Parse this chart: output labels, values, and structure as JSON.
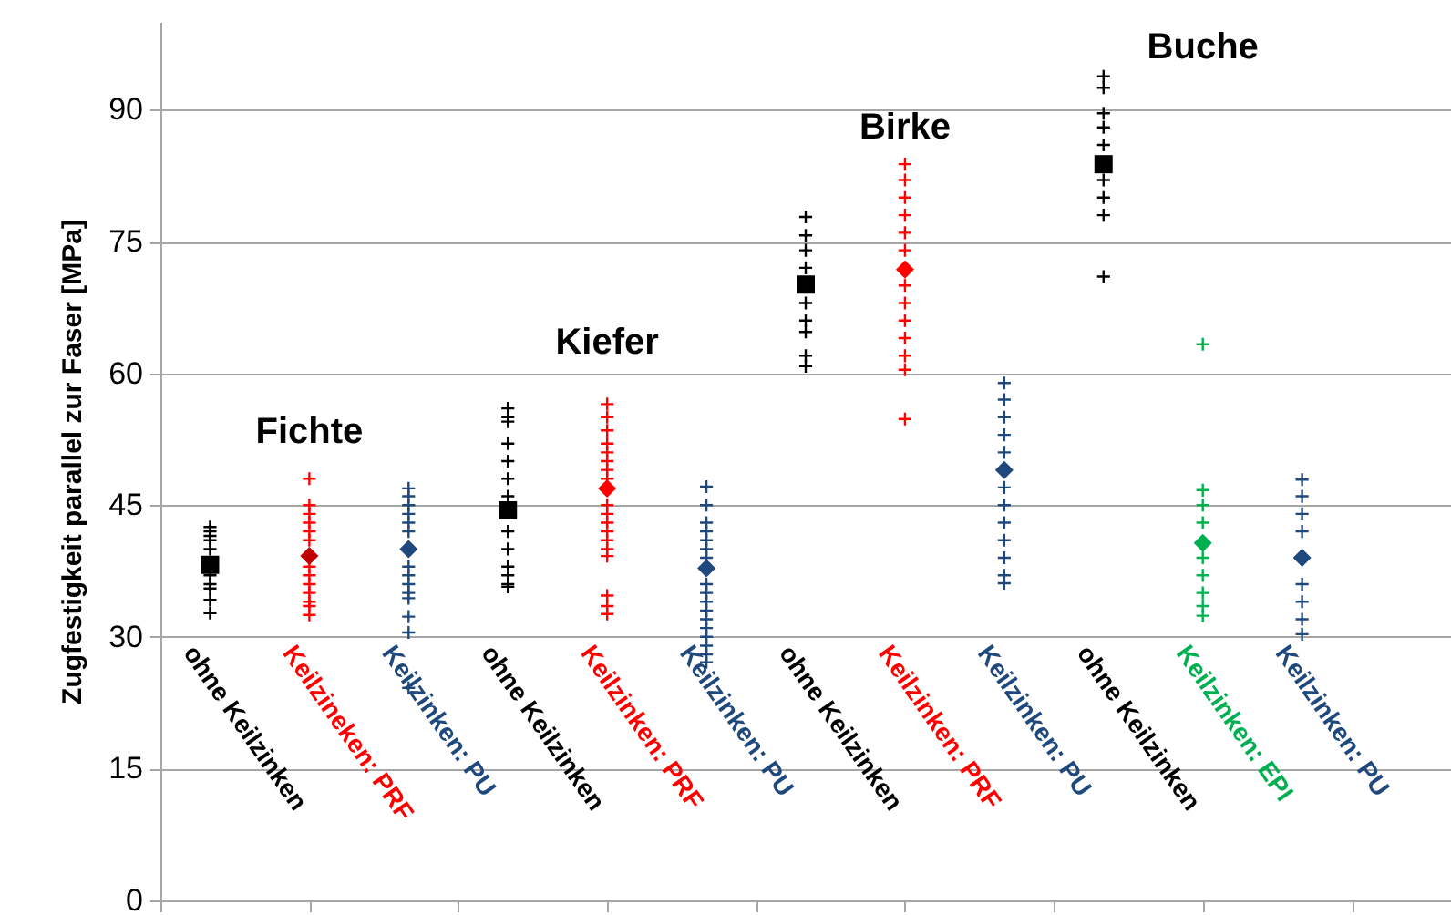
{
  "chart_data": {
    "type": "scatter",
    "ylabel": "Zugfestigkeit parallel zur Faser [MPa]",
    "ylim": [
      0,
      100
    ],
    "yticks": [
      0,
      15,
      30,
      45,
      60,
      75,
      90
    ],
    "grid": "y",
    "marker": "cross",
    "categories": [
      "ohne Keilzinken",
      "Keilzineken: PRF",
      "Keilzinken: PU",
      "ohne Keilzinken",
      "Keilzinken: PRF",
      "Keilzinken: PU",
      "ohne Keilzinken",
      "Keilzinken: PRF",
      "Keilzinken: PU",
      "ohne Keilzinken",
      "Keilzinken: EPI",
      "Keilzinken: PU"
    ],
    "annotations": [
      "Fichte",
      "Kiefer",
      "Birke",
      "Buche"
    ],
    "series": [
      {
        "colors": [
          "#000000",
          "#ff0000",
          "#1f497d",
          "#000000",
          "#ff0000",
          "#1f497d",
          "#000000",
          "#ff0000",
          "#1f497d",
          "#000000",
          "#00b050",
          "#1f497d"
        ],
        "values": [
          42.5,
          48,
          46.9,
          56,
          56.5,
          47.1,
          77.8,
          83.8,
          58.9,
          93.8,
          63.3,
          47.9
        ]
      },
      {
        "colors": [
          "#000000",
          "#ff0000",
          "#1f497d",
          "#000000",
          "#ff0000",
          "#1f497d",
          "#000000",
          "#ff0000",
          "#1f497d",
          "#000000",
          "#00b050",
          "#1f497d"
        ],
        "values": [
          42,
          45,
          46,
          55,
          55,
          45,
          75.7,
          82,
          57,
          92.5,
          46.7,
          46
        ]
      },
      {
        "colors": [
          "#000000",
          "#ff0000",
          "#1f497d",
          "#000000",
          "#ff0000",
          "#1f497d",
          "#000000",
          "#ff0000",
          "#1f497d",
          "#000000",
          "#00b050",
          "#1f497d"
        ],
        "values": [
          41.5,
          44,
          45,
          54.5,
          53.5,
          43,
          74,
          80,
          55,
          89.6,
          45,
          44
        ]
      },
      {
        "colors": [
          "#000000",
          "#ff0000",
          "#1f497d",
          "#000000",
          "#ff0000",
          "#1f497d",
          "#000000",
          "#ff0000",
          "#1f497d",
          "#000000",
          "#00b050",
          "#1f497d"
        ],
        "values": [
          41,
          43,
          44,
          52,
          52,
          42,
          72,
          78,
          53,
          88,
          43,
          42
        ]
      },
      {
        "colors": [
          "#000000",
          "#ff0000",
          "#1f497d",
          "#000000",
          "#ff0000",
          "#1f497d",
          null,
          "#ff0000",
          "#1f497d",
          "#000000",
          null,
          null
        ],
        "values": [
          40,
          42,
          43,
          50,
          51,
          41,
          null,
          76,
          51,
          86,
          null,
          null
        ]
      },
      {
        "colors": [
          null,
          "#ff0000",
          "#1f497d",
          "#000000",
          "#ff0000",
          "#1f497d",
          "#000000",
          "#ff0000",
          null,
          null,
          "#00b050",
          null
        ],
        "values": [
          null,
          41,
          42,
          48,
          50,
          40,
          68,
          74,
          null,
          null,
          39,
          null
        ]
      },
      {
        "colors": [
          "#000000",
          null,
          null,
          "#000000",
          "#ff0000",
          "#1f497d",
          "#000000",
          null,
          "#1f497d",
          "#000000",
          "#00b050",
          "#1f497d"
        ],
        "values": [
          37,
          null,
          null,
          46,
          49,
          39,
          66,
          null,
          47,
          82,
          37,
          36
        ]
      },
      {
        "colors": [
          "#000000",
          null,
          null,
          null,
          "#ff0000",
          null,
          "#000000",
          "#ff0000",
          "#1f497d",
          "#000000",
          "#00b050",
          "#1f497d"
        ],
        "values": [
          36,
          null,
          null,
          null,
          48,
          null,
          64.7,
          70,
          45,
          80,
          35,
          34
        ]
      },
      {
        "colors": [
          "#000000",
          "#ff0000",
          null,
          "#000000",
          null,
          null,
          "#000000",
          "#ff0000",
          "#1f497d",
          "#000000",
          "#00b050",
          "#1f497d"
        ],
        "values": [
          35.5,
          38,
          null,
          42,
          null,
          null,
          62,
          68,
          43,
          78,
          33.5,
          32
        ]
      },
      {
        "colors": [
          "#000000",
          "#ff0000",
          "#1f497d",
          "#000000",
          null,
          "#1f497d",
          "#000000",
          "#ff0000",
          "#1f497d",
          "#000000",
          "#00b050",
          "#1f497d"
        ],
        "values": [
          34.2,
          37,
          38,
          40,
          null,
          36,
          60.8,
          66,
          41,
          71,
          32.4,
          30.3
        ]
      },
      {
        "colors": [
          "#000000",
          "#ff0000",
          "#1f497d",
          "#000000",
          "#ff0000",
          "#1f497d",
          null,
          "#ff0000",
          "#1f497d",
          null,
          null,
          null
        ],
        "values": [
          32.7,
          36,
          37,
          38,
          45,
          35,
          null,
          64,
          39,
          null,
          null,
          null
        ]
      },
      {
        "colors": [
          null,
          "#ff0000",
          "#1f497d",
          "#000000",
          "#ff0000",
          "#1f497d",
          null,
          "#ff0000",
          "#1f497d",
          null,
          null,
          null
        ],
        "values": [
          null,
          35,
          36,
          37,
          44,
          34,
          null,
          62,
          37,
          null,
          null,
          null
        ]
      },
      {
        "colors": [
          null,
          "#ff0000",
          "#1f497d",
          "#000000",
          "#ff0000",
          "#1f497d",
          null,
          "#ff0000",
          "#1f497d",
          null,
          null,
          null
        ],
        "values": [
          null,
          34,
          35,
          36,
          43,
          33,
          null,
          60.4,
          36.1,
          null,
          null,
          null
        ]
      },
      {
        "colors": [
          null,
          "#ff0000",
          "#1f497d",
          "#000000",
          "#ff0000",
          "#1f497d",
          null,
          "#ff0000",
          null,
          null,
          null,
          null
        ],
        "values": [
          null,
          33.5,
          34.4,
          35.7,
          42,
          32,
          null,
          54.8,
          null,
          null,
          null,
          null
        ]
      },
      {
        "colors": [
          null,
          "#ff0000",
          "#1f497d",
          null,
          "#ff0000",
          "#1f497d",
          null,
          null,
          null,
          null,
          null,
          null
        ],
        "values": [
          null,
          32.5,
          32.3,
          null,
          41,
          31,
          null,
          null,
          null,
          null,
          null,
          null
        ]
      },
      {
        "colors": [
          null,
          null,
          "#1f497d",
          null,
          "#ff0000",
          "#1f497d",
          null,
          null,
          null,
          null,
          null,
          null
        ],
        "values": [
          null,
          null,
          30.5,
          null,
          40,
          30,
          null,
          null,
          null,
          null,
          null,
          null
        ]
      },
      {
        "colors": [
          null,
          null,
          "#1f497d",
          null,
          "#ff0000",
          "#1f497d",
          null,
          null,
          null,
          null,
          null,
          null
        ],
        "values": [
          null,
          null,
          24.2,
          null,
          39.2,
          29,
          null,
          null,
          null,
          null,
          null,
          null
        ]
      },
      {
        "colors": [
          null,
          null,
          null,
          null,
          "#ff0000",
          "#1f497d",
          null,
          null,
          null,
          null,
          null,
          null
        ],
        "values": [
          null,
          null,
          null,
          null,
          34.7,
          28,
          null,
          null,
          null,
          null,
          null,
          null
        ]
      },
      {
        "colors": [
          null,
          null,
          null,
          null,
          "#ff0000",
          "#1f497d",
          null,
          null,
          null,
          null,
          null,
          null
        ],
        "values": [
          null,
          null,
          null,
          null,
          33.5,
          27.1,
          null,
          null,
          null,
          null,
          null,
          null
        ]
      },
      {
        "colors": [
          null,
          null,
          null,
          null,
          "#ff0000",
          null,
          null,
          null,
          null,
          null,
          null,
          null
        ],
        "values": [
          null,
          null,
          null,
          null,
          32.6,
          null,
          null,
          null,
          null,
          null,
          null,
          null
        ]
      },
      {
        "color": "#000000",
        "marker": "square",
        "values": [
          38.2,
          null,
          null,
          44.4,
          null,
          null,
          70.1,
          null,
          null,
          83.8,
          null,
          null
        ]
      },
      {
        "colors": [
          null,
          "#c00000",
          "#1f497d",
          null,
          "#ff0000",
          "#1f497d",
          null,
          "#ff0000",
          "#1f497d",
          null,
          "#00b050",
          "#1f497d"
        ],
        "marker": "diamond",
        "values": [
          null,
          39.2,
          40,
          null,
          46.9,
          37.8,
          null,
          71.8,
          49,
          null,
          40.7,
          39
        ]
      }
    ]
  }
}
